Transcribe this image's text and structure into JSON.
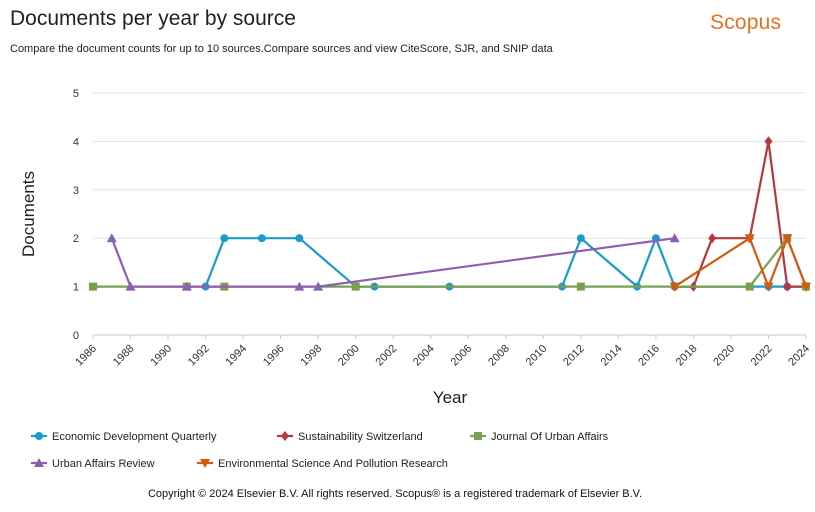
{
  "header": {
    "title": "Documents per year by source",
    "subtitle": "Compare the document counts for up to 10 sources.Compare sources and view CiteScore, SJR, and SNIP data",
    "brand": "Scopus"
  },
  "footer": {
    "copyright": "Copyright © 2024 Elsevier B.V. All rights reserved. Scopus® is a registered trademark of Elsevier B.V."
  },
  "chart_data": {
    "type": "line",
    "title": "Documents per year by source",
    "xlabel": "Year",
    "ylabel": "Documents",
    "xlim": [
      1986,
      2024
    ],
    "ylim": [
      0,
      5
    ],
    "x_ticks": [
      "1986",
      "1988",
      "1990",
      "1992",
      "1994",
      "1996",
      "1998",
      "2000",
      "2002",
      "2004",
      "2006",
      "2008",
      "2010",
      "2012",
      "2014",
      "2016",
      "2018",
      "2020",
      "2022",
      "2024"
    ],
    "y_ticks": [
      "0",
      "1",
      "2",
      "3",
      "4",
      "5"
    ],
    "grid": "horizontal",
    "legend_position": "bottom",
    "series": [
      {
        "name": "Economic Development Quarterly",
        "color": "#1a9bc8",
        "marker": "circle",
        "points": [
          [
            1992,
            1
          ],
          [
            1993,
            2
          ],
          [
            1995,
            2
          ],
          [
            1997,
            2
          ],
          [
            2000,
            1
          ],
          [
            2001,
            1
          ],
          [
            2005,
            1
          ],
          [
            2011,
            1
          ],
          [
            2012,
            2
          ],
          [
            2015,
            1
          ],
          [
            2016,
            2
          ],
          [
            2017,
            1
          ],
          [
            2021,
            1
          ],
          [
            2022,
            1
          ],
          [
            2023,
            1
          ],
          [
            2024,
            1
          ]
        ]
      },
      {
        "name": "Sustainability Switzerland",
        "color": "#b5373f",
        "marker": "diamond",
        "points": [
          [
            2017,
            1
          ],
          [
            2018,
            1
          ],
          [
            2019,
            2
          ],
          [
            2021,
            2
          ],
          [
            2022,
            4
          ],
          [
            2023,
            1
          ],
          [
            2024,
            1
          ]
        ]
      },
      {
        "name": "Journal Of Urban Affairs",
        "color": "#76a152",
        "marker": "square",
        "points": [
          [
            1986,
            1
          ],
          [
            1991,
            1
          ],
          [
            1993,
            1
          ],
          [
            2000,
            1
          ],
          [
            2012,
            1
          ],
          [
            2021,
            1
          ],
          [
            2023,
            2
          ],
          [
            2024,
            1
          ]
        ]
      },
      {
        "name": "Urban Affairs Review",
        "color": "#8e5eb0",
        "marker": "triangle",
        "points": [
          [
            1987,
            2
          ],
          [
            1988,
            1
          ],
          [
            1991,
            1
          ],
          [
            1997,
            1
          ],
          [
            1998,
            1
          ],
          [
            2017,
            2
          ]
        ]
      },
      {
        "name": "Environmental Science And Pollution Research",
        "color": "#d35a0f",
        "marker": "triangle-down",
        "points": [
          [
            2017,
            1
          ],
          [
            2021,
            2
          ],
          [
            2022,
            1
          ],
          [
            2023,
            2
          ],
          [
            2024,
            1
          ]
        ]
      }
    ]
  }
}
